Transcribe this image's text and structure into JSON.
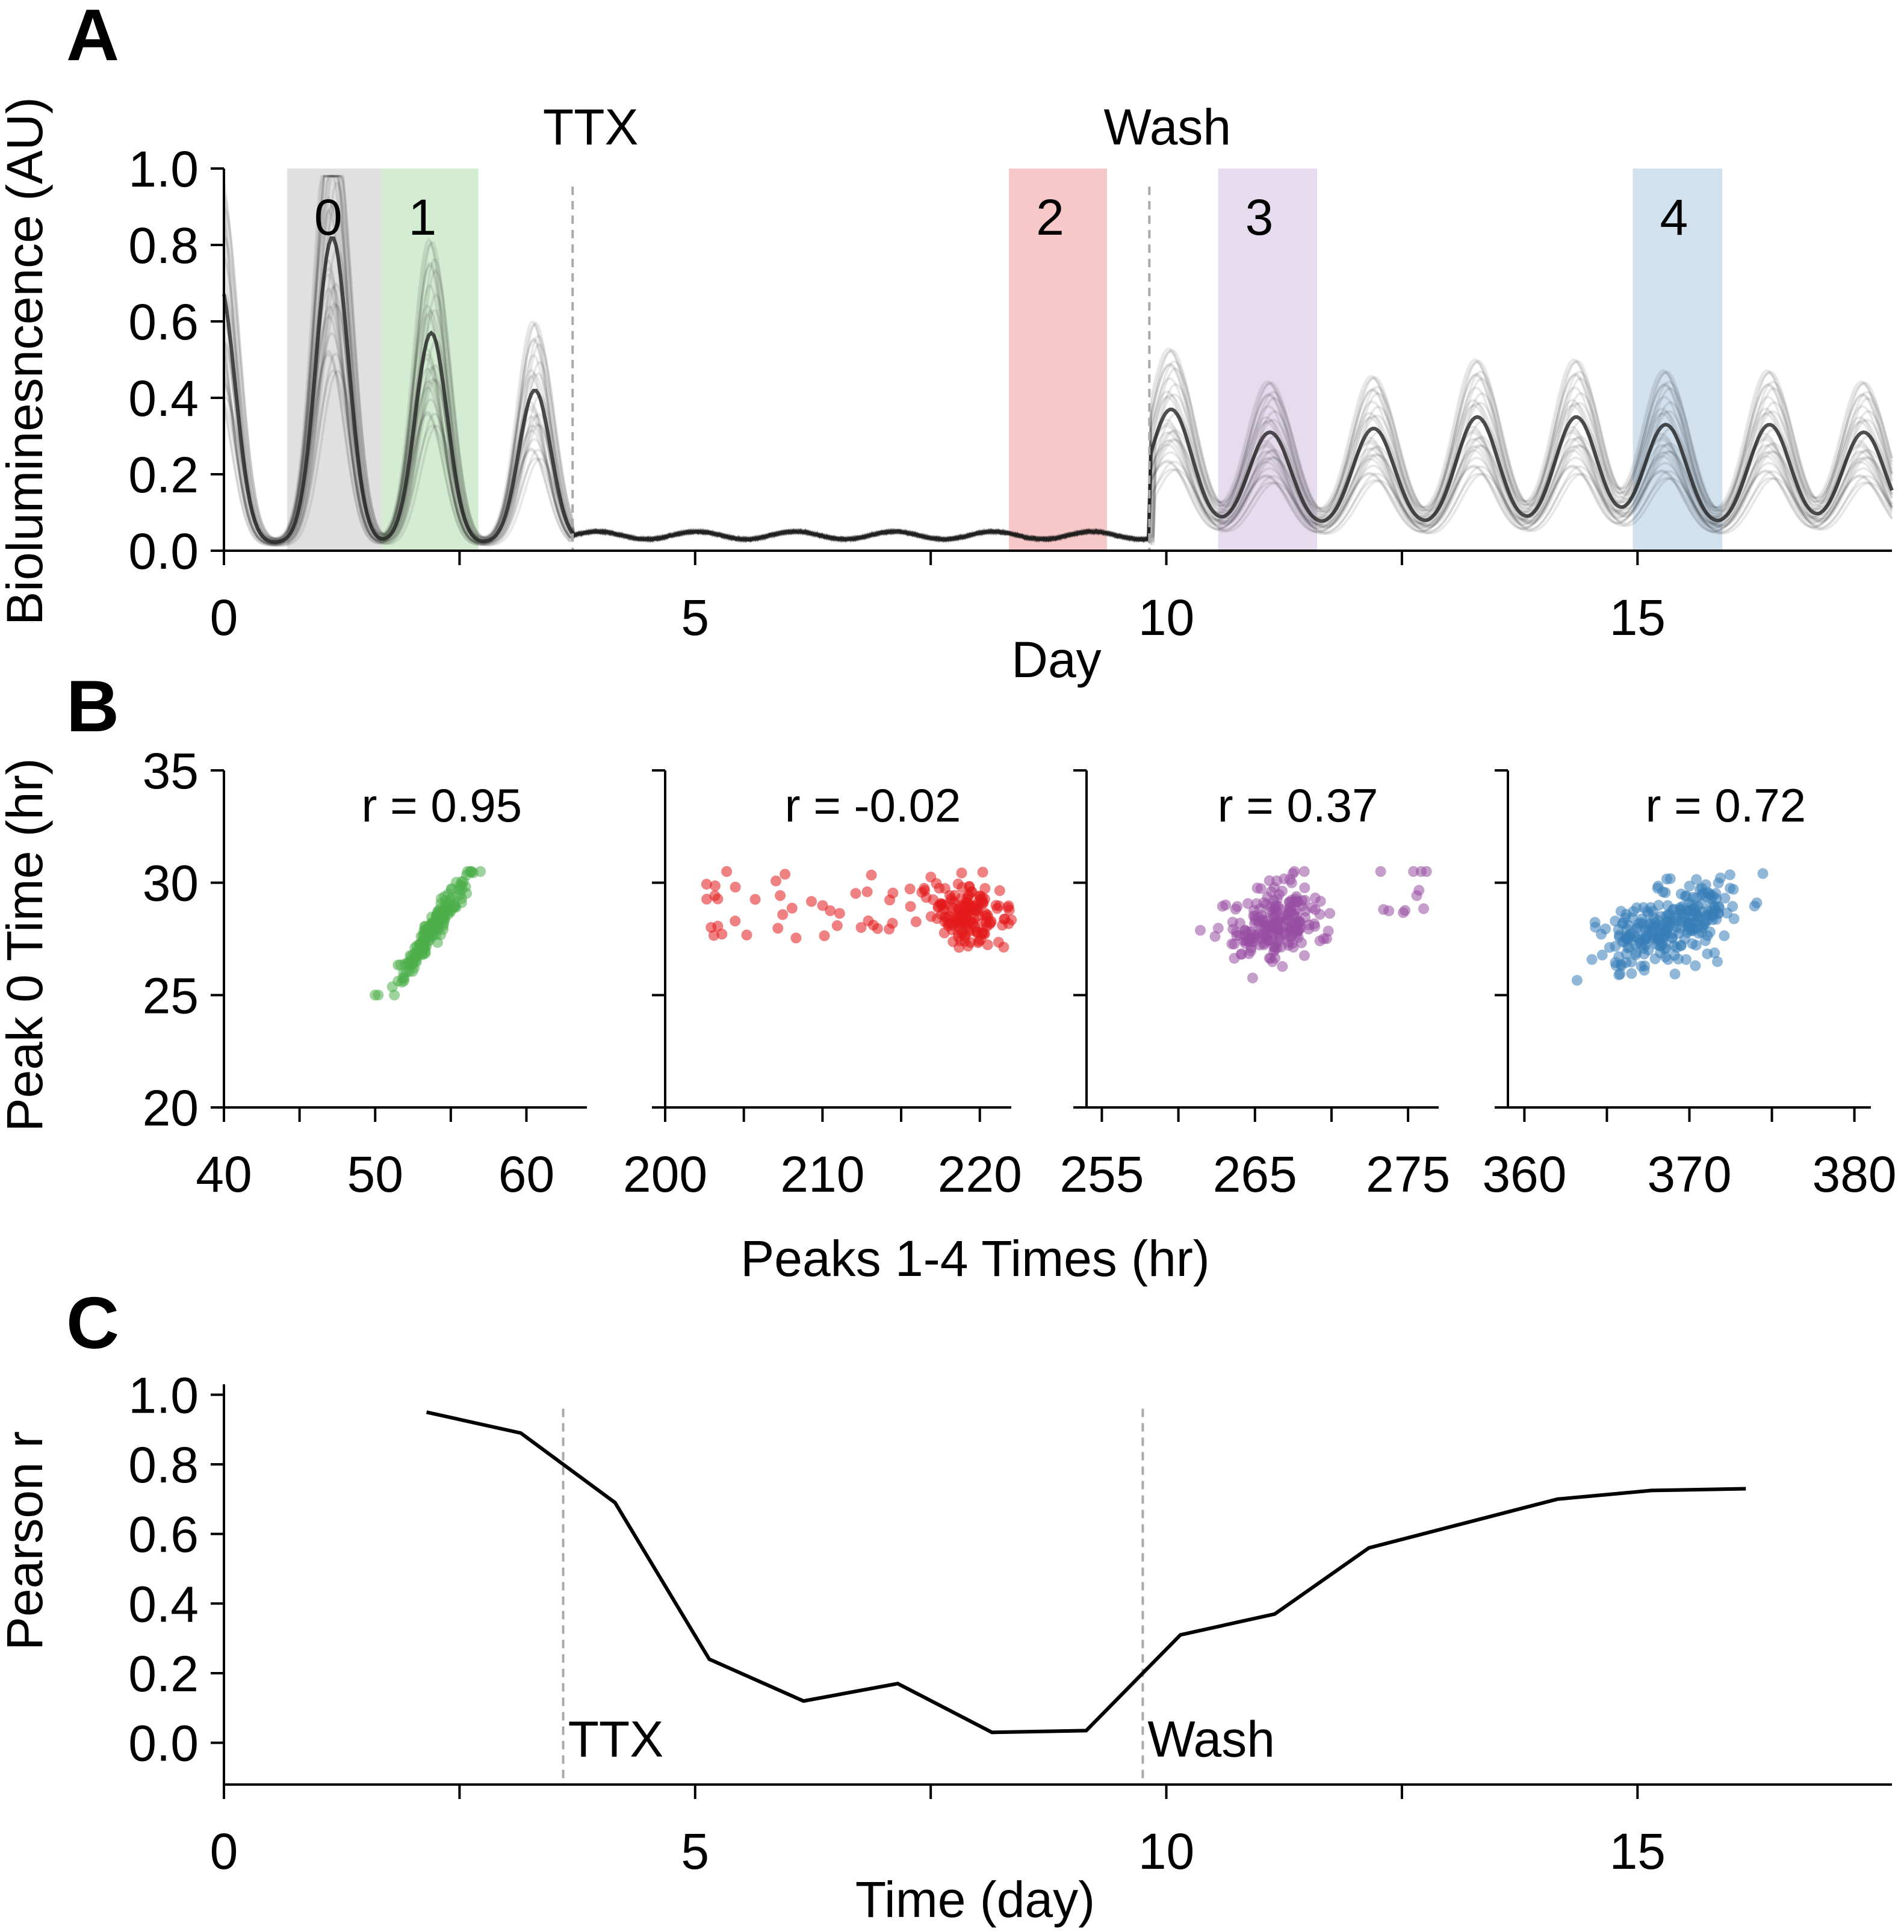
{
  "figure": {
    "panel_labels": [
      "A",
      "B",
      "C"
    ]
  },
  "chart_data": [
    {
      "panel": "A",
      "type": "line",
      "ylabel": "Bioluminesncence (AU)",
      "xlabel": "Day",
      "xlim": [
        0,
        17.7
      ],
      "ylim": [
        0,
        1.0
      ],
      "xticks": [
        "0",
        "5",
        "10",
        "15"
      ],
      "yticks": [
        "0.0",
        "0.2",
        "0.4",
        "0.6",
        "0.8",
        "1.0"
      ],
      "grid": false,
      "description_series": "many overlaid gray single-cell traces",
      "x_peaks_pre": [
        1.15,
        2.2,
        3.3
      ],
      "peak_amplitudes_pre": [
        0.8,
        0.55,
        0.4
      ],
      "baseline_ttx": 0.04,
      "x_peaks_post": [
        10.05,
        11.1,
        12.2,
        13.3,
        14.35,
        15.3,
        16.4,
        17.4
      ],
      "peak_amplitudes_post": [
        0.32,
        0.26,
        0.27,
        0.3,
        0.3,
        0.28,
        0.28,
        0.26
      ],
      "bands": [
        {
          "label": "0",
          "x0": 0.67,
          "x1": 1.67,
          "color": "#cccccc"
        },
        {
          "label": "1",
          "x0": 1.67,
          "x1": 2.7,
          "color": "#b7e0b3"
        },
        {
          "label": "2",
          "x0": 8.33,
          "x1": 9.37,
          "color": "#f2a3a3"
        },
        {
          "label": "3",
          "x0": 10.55,
          "x1": 11.6,
          "color": "#d6c4e2"
        },
        {
          "label": "4",
          "x0": 14.95,
          "x1": 15.9,
          "color": "#b3cde3"
        }
      ],
      "events": [
        {
          "label": "TTX",
          "x": 3.7
        },
        {
          "label": "Wash",
          "x": 9.82
        }
      ]
    },
    {
      "panel": "B",
      "type": "scatter",
      "ylabel": "Peak 0 Time (hr)",
      "xlabel": "Peaks 1-4 Times (hr)",
      "ylim": [
        20,
        35
      ],
      "yticks": [
        "20",
        "25",
        "30",
        "35"
      ],
      "subplots": [
        {
          "r_label": "r = 0.95",
          "xlim": [
            40,
            64
          ],
          "xticks": [
            "40",
            "50",
            "60"
          ],
          "color": "#4daf4a",
          "x_center": 53.8,
          "x_spread": 1.3,
          "y_center": 27.9,
          "slope": 0.95,
          "n": 200
        },
        {
          "r_label": "r = -0.02",
          "xlim": [
            200,
            222
          ],
          "xticks": [
            "200",
            "210",
            "220"
          ],
          "color": "#e41a1c",
          "x_center": 219.5,
          "x_spread": 1.2,
          "y_center": 28.6,
          "slope": -0.02,
          "n": 200
        },
        {
          "r_label": "r = 0.37",
          "xlim": [
            254,
            277
          ],
          "xticks": [
            "255",
            "265",
            "275"
          ],
          "color": "#984ea3",
          "x_center": 266.3,
          "x_spread": 1.6,
          "y_center": 28.2,
          "slope": 0.37,
          "n": 220
        },
        {
          "r_label": "r = 0.72",
          "xlim": [
            359,
            381
          ],
          "xticks": [
            "360",
            "370",
            "380"
          ],
          "color": "#377eb8",
          "x_center": 368.8,
          "x_spread": 2.0,
          "y_center": 28.1,
          "slope": 0.72,
          "n": 260
        }
      ]
    },
    {
      "panel": "C",
      "type": "line",
      "ylabel": "Pearson r",
      "xlabel": "Time (day)",
      "xlim": [
        0,
        17.7
      ],
      "ylim": [
        -0.12,
        1.03
      ],
      "xticks": [
        "0",
        "5",
        "10",
        "15"
      ],
      "yticks": [
        "0.0",
        "0.2",
        "0.4",
        "0.6",
        "0.8",
        "1.0"
      ],
      "x": [
        2.15,
        3.15,
        4.15,
        5.15,
        6.15,
        7.15,
        8.15,
        9.15,
        10.15,
        11.15,
        12.15,
        13.15,
        14.15,
        15.15,
        16.15
      ],
      "y": [
        0.95,
        0.89,
        0.69,
        0.24,
        0.12,
        0.17,
        0.03,
        0.035,
        0.31,
        0.37,
        0.56,
        0.63,
        0.7,
        0.725,
        0.73
      ],
      "events": [
        {
          "label": "TTX",
          "x": 3.6
        },
        {
          "label": "Wash",
          "x": 9.75
        }
      ]
    }
  ]
}
